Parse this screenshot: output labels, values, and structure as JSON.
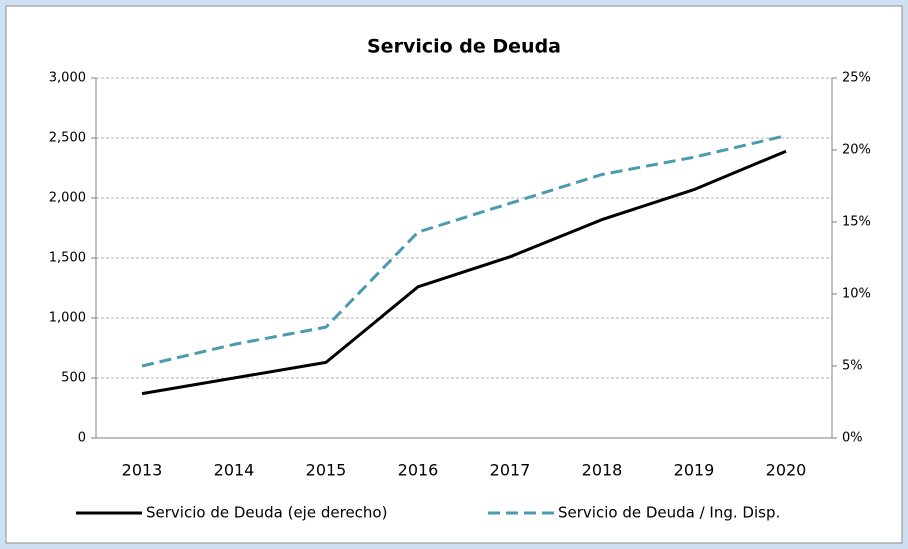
{
  "chart_data": {
    "type": "line",
    "title": "Servicio de Deuda",
    "categories": [
      "2013",
      "2014",
      "2015",
      "2016",
      "2017",
      "2018",
      "2019",
      "2020"
    ],
    "series": [
      {
        "name": "Servicio de Deuda (eje derecho)",
        "color": "#000000",
        "dashed": false,
        "values": [
          370,
          500,
          630,
          1260,
          1510,
          1820,
          2070,
          2390
        ]
      },
      {
        "name": "Servicio de Deuda / Ing. Disp.",
        "color": "#4a9bb0",
        "dashed": true,
        "axis": "y2",
        "values": [
          5.0,
          6.5,
          7.7,
          14.3,
          16.3,
          18.3,
          19.5,
          21.0
        ]
      }
    ],
    "ylim": [
      0,
      3000
    ],
    "yticks": [
      0,
      500,
      {
        "value": 1000,
        "label": "1,000"
      },
      {
        "value": 1500,
        "label": "1,500"
      },
      {
        "value": 2000,
        "label": "2,000"
      },
      {
        "value": 2500,
        "label": "2,500"
      },
      {
        "value": 3000,
        "label": "3,000"
      }
    ],
    "y2lim": [
      0,
      25
    ],
    "y2ticks": [
      {
        "value": 0,
        "label": "0%"
      },
      {
        "value": 5,
        "label": "5%"
      },
      {
        "value": 10,
        "label": "10%"
      },
      {
        "value": 15,
        "label": "15%"
      },
      {
        "value": 20,
        "label": "20%"
      },
      {
        "value": 25,
        "label": "25%"
      }
    ],
    "grid": true,
    "legend": "bottom"
  }
}
